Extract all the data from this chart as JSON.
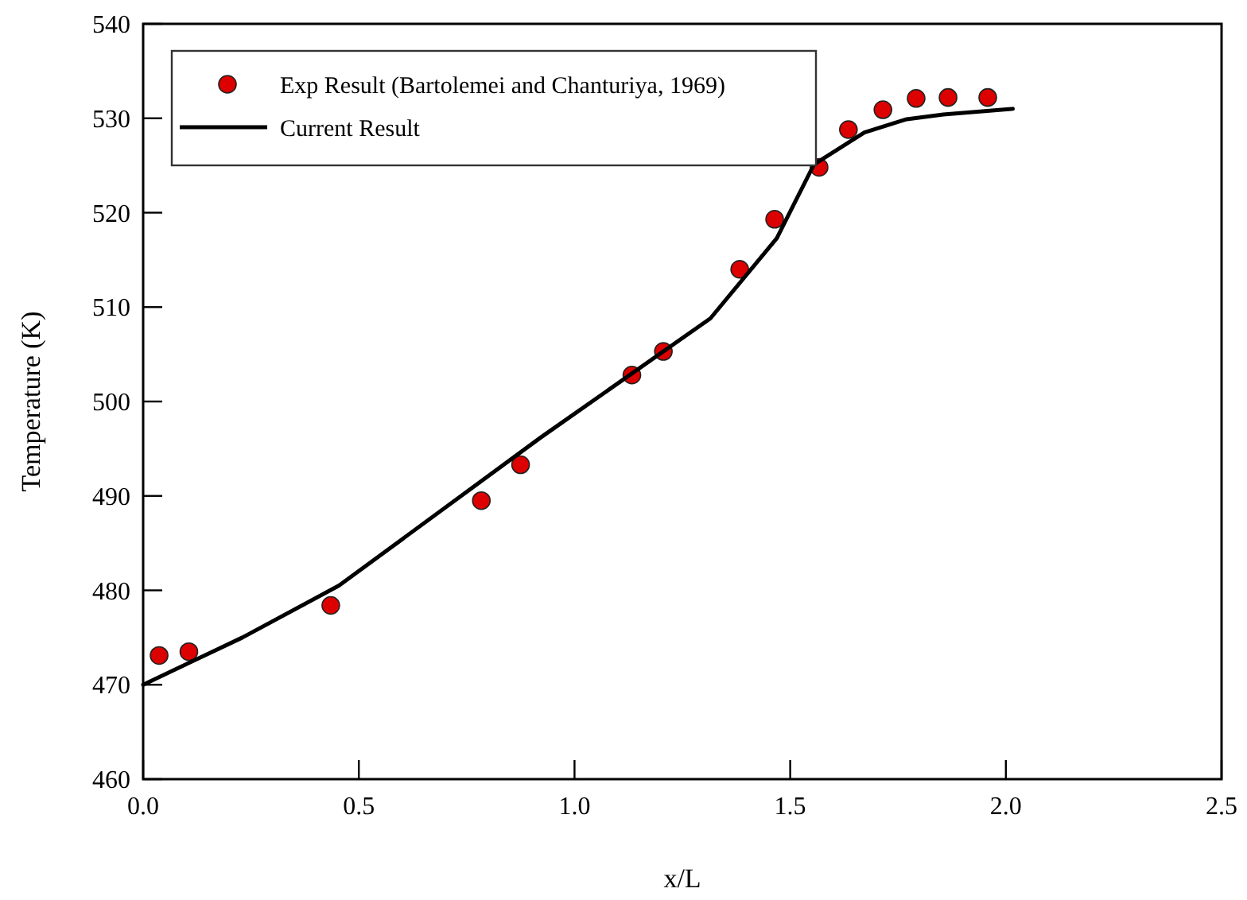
{
  "chart_data": {
    "type": "scatter",
    "xlabel": "x/L",
    "ylabel": "Temperature (K)",
    "xlim": [
      0,
      2.5
    ],
    "xticks": [
      {
        "value": 0,
        "label": "0.0"
      },
      {
        "value": 0.5,
        "label": "0.5"
      },
      {
        "value": 1,
        "label": "1.0"
      },
      {
        "value": 1.5,
        "label": "1.5"
      },
      {
        "value": 2,
        "label": "2.0"
      },
      {
        "value": 2.5,
        "label": "2.5"
      }
    ],
    "ylim": [
      460,
      540
    ],
    "yticks": [
      460,
      470,
      480,
      490,
      500,
      510,
      520,
      530,
      540
    ],
    "legend": "top left",
    "grid": false,
    "series": [
      {
        "name": "Exp Result (Bartolemei and Chanturiya, 1969)",
        "marker": "circle",
        "color": "#dd0000",
        "x": [
          0.037,
          0.106,
          0.435,
          0.784,
          0.875,
          1.133,
          1.206,
          1.383,
          1.464,
          1.567,
          1.635,
          1.715,
          1.792,
          1.866,
          1.958
        ],
        "values": [
          473.1,
          473.5,
          478.4,
          489.5,
          493.3,
          502.8,
          505.3,
          514.0,
          519.3,
          524.8,
          528.8,
          530.9,
          532.1,
          532.2,
          532.2
        ]
      },
      {
        "name": "Current Result",
        "type": "line",
        "line_style": "solid",
        "color": "#000000",
        "x": [
          0,
          0.23,
          0.454,
          0.922,
          1.315,
          1.469,
          1.555,
          1.672,
          1.77,
          1.855,
          2.016
        ],
        "values": [
          470,
          475,
          480.5,
          496.2,
          508.8,
          517.3,
          525.1,
          528.5,
          529.9,
          530.4,
          531.0
        ]
      }
    ]
  }
}
